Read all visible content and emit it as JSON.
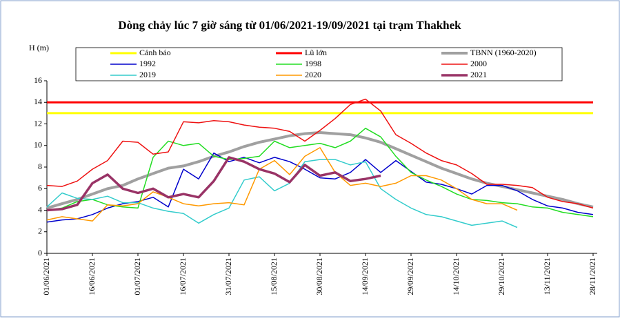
{
  "chart_data": {
    "type": "line",
    "title": "Dòng chảy lúc 7 giờ sáng từ 01/06/2021-19/09/2021 tại trạm Thakhek",
    "y_label": "H (m)",
    "categories": [
      "01/06/2021",
      null,
      null,
      "16/06/2021",
      null,
      null,
      "01/07/2021",
      null,
      null,
      "16/07/2021",
      null,
      null,
      "31/07/2021",
      null,
      null,
      "15/08/2021",
      null,
      null,
      "30/08/2021",
      null,
      null,
      "14/09/2021",
      null,
      null,
      "29/09/2021",
      null,
      null,
      "14/10/2021",
      null,
      null,
      "29/10/2021",
      null,
      null,
      "13/11/2021",
      null,
      null,
      "28/11/2021"
    ],
    "ylim": [
      0,
      16
    ],
    "yticks": [
      0,
      2,
      4,
      6,
      8,
      10,
      12,
      14,
      16
    ],
    "series": [
      {
        "name": "Cảnh báo",
        "color": "#ffff00",
        "width": 3,
        "values": [
          13,
          13,
          13,
          13,
          13,
          13,
          13,
          13,
          13,
          13,
          13,
          13,
          13,
          13,
          13,
          13,
          13,
          13,
          13,
          13,
          13,
          13,
          13,
          13,
          13,
          13,
          13,
          13,
          13,
          13,
          13,
          13,
          13,
          13,
          13,
          13,
          13
        ]
      },
      {
        "name": "Lũ lớn",
        "color": "#ff0000",
        "width": 3,
        "values": [
          14,
          14,
          14,
          14,
          14,
          14,
          14,
          14,
          14,
          14,
          14,
          14,
          14,
          14,
          14,
          14,
          14,
          14,
          14,
          14,
          14,
          14,
          14,
          14,
          14,
          14,
          14,
          14,
          14,
          14,
          14,
          14,
          14,
          14,
          14,
          14,
          14
        ]
      },
      {
        "name": "TBNN (1960-2020)",
        "color": "#a0a0a0",
        "width": 4,
        "values": [
          4.2,
          4.6,
          5.0,
          5.5,
          6.0,
          6.3,
          6.9,
          7.4,
          7.9,
          8.1,
          8.5,
          9.0,
          9.4,
          9.9,
          10.3,
          10.6,
          10.9,
          11.1,
          11.2,
          11.1,
          11.0,
          10.7,
          10.3,
          9.7,
          9.1,
          8.5,
          7.9,
          7.4,
          6.9,
          6.5,
          6.2,
          5.9,
          5.6,
          5.3,
          5.0,
          4.6,
          4.3
        ]
      },
      {
        "name": "1992",
        "color": "#0000cc",
        "width": 1.5,
        "values": [
          2.9,
          3.1,
          3.2,
          3.6,
          4.2,
          4.6,
          4.8,
          5.2,
          4.3,
          7.8,
          6.9,
          9.3,
          8.5,
          8.9,
          8.4,
          8.9,
          8.5,
          7.8,
          7.0,
          6.9,
          7.5,
          8.7,
          7.5,
          8.6,
          7.6,
          6.6,
          6.4,
          6.0,
          5.5,
          6.3,
          6.3,
          5.8,
          5.0,
          4.4,
          4.2,
          3.8,
          3.6
        ]
      },
      {
        "name": "1998",
        "color": "#22dd22",
        "width": 1.5,
        "values": [
          4.0,
          4.2,
          4.8,
          5.0,
          4.5,
          4.3,
          4.2,
          8.9,
          10.4,
          10.0,
          10.2,
          9.0,
          8.7,
          8.8,
          9.0,
          10.4,
          9.8,
          10.0,
          10.2,
          9.8,
          10.4,
          11.6,
          10.8,
          9.0,
          7.5,
          6.8,
          6.2,
          5.5,
          5.0,
          4.9,
          4.7,
          4.6,
          4.3,
          4.2,
          3.8,
          3.6,
          3.4
        ]
      },
      {
        "name": "2000",
        "color": "#ee1111",
        "width": 1.5,
        "values": [
          6.3,
          6.2,
          6.7,
          7.8,
          8.6,
          10.4,
          10.3,
          9.2,
          9.4,
          12.2,
          12.1,
          12.3,
          12.2,
          11.9,
          11.7,
          11.6,
          11.3,
          10.4,
          11.4,
          12.5,
          13.8,
          14.3,
          13.2,
          11.0,
          10.2,
          9.3,
          8.6,
          8.2,
          7.4,
          6.4,
          6.4,
          6.3,
          6.1,
          5.2,
          4.8,
          4.6,
          4.2
        ]
      },
      {
        "name": "2019",
        "color": "#33cccc",
        "width": 1.5,
        "values": [
          4.3,
          5.6,
          5.1,
          5.0,
          5.3,
          4.7,
          4.7,
          4.2,
          3.9,
          3.7,
          2.8,
          3.6,
          4.2,
          6.8,
          7.1,
          5.8,
          6.5,
          8.5,
          8.7,
          8.7,
          8.2,
          8.5,
          6.0,
          5.0,
          4.2,
          3.6,
          3.4,
          3.0,
          2.6,
          2.8,
          3.0,
          2.4,
          null,
          null,
          null,
          null,
          null
        ]
      },
      {
        "name": "2020",
        "color": "#ff9900",
        "width": 1.5,
        "values": [
          3.1,
          3.4,
          3.2,
          3.0,
          4.5,
          4.4,
          4.6,
          5.7,
          5.2,
          4.6,
          4.4,
          4.6,
          4.7,
          4.5,
          7.8,
          8.6,
          7.3,
          9.0,
          9.8,
          7.5,
          6.3,
          6.5,
          6.2,
          6.5,
          7.2,
          7.2,
          6.8,
          6.0,
          5.0,
          4.6,
          4.6,
          4.0,
          null,
          null,
          null,
          null,
          null
        ]
      },
      {
        "name": "2021",
        "color": "#993366",
        "width": 3.5,
        "values": [
          4.0,
          4.1,
          4.5,
          6.5,
          7.3,
          6.0,
          5.6,
          6.0,
          5.2,
          5.5,
          5.2,
          6.7,
          8.9,
          8.5,
          7.8,
          7.4,
          6.6,
          8.2,
          7.2,
          7.5,
          6.7,
          6.9,
          7.2,
          null,
          null,
          null,
          null,
          null,
          null,
          null,
          null,
          null,
          null,
          null,
          null,
          null,
          null
        ]
      }
    ]
  }
}
